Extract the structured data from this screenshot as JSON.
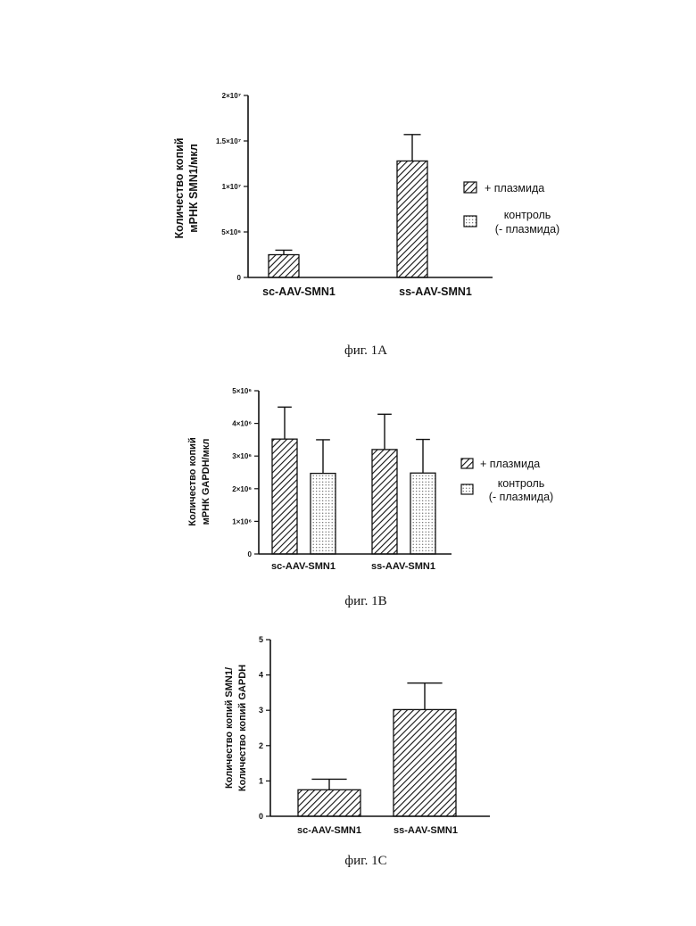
{
  "colors": {
    "ink": "#111111",
    "dots": "#444444"
  },
  "chart_data": [
    {
      "type": "bar",
      "caption": "фиг. 1A",
      "ylabel": [
        "Количество копий",
        "мРНК SMN1/мкл"
      ],
      "ylim": [
        0,
        20000000
      ],
      "yticks": [
        {
          "v": 0,
          "label": "0"
        },
        {
          "v": 5000000,
          "label": "5×10⁶"
        },
        {
          "v": 10000000,
          "label": "1×10⁷"
        },
        {
          "v": 15000000,
          "label": "1.5×10⁷"
        },
        {
          "v": 20000000,
          "label": "2×10⁷"
        }
      ],
      "categories": [
        "sc-AAV-SMN1",
        "ss-AAV-SMN1"
      ],
      "series": [
        {
          "name": "+ плазмида",
          "pattern": "hatch",
          "values": [
            2500000,
            12800000
          ],
          "errors": [
            500000,
            2900000
          ]
        },
        {
          "name": "контроль (- плазмида)",
          "pattern": "dots",
          "values": [
            0,
            0
          ],
          "errors": [
            0,
            0
          ]
        }
      ],
      "legend": [
        "+ плазмида",
        "контроль",
        "(- плазмида)"
      ]
    },
    {
      "type": "bar",
      "caption": "фиг. 1B",
      "ylabel": [
        "Количество копий",
        "мРНК GAPDH/мкл"
      ],
      "ylim": [
        0,
        5000000
      ],
      "yticks": [
        {
          "v": 0,
          "label": "0"
        },
        {
          "v": 1000000,
          "label": "1×10⁶"
        },
        {
          "v": 2000000,
          "label": "2×10⁶"
        },
        {
          "v": 3000000,
          "label": "3×10⁶"
        },
        {
          "v": 4000000,
          "label": "4×10⁶"
        },
        {
          "v": 5000000,
          "label": "5×10⁶"
        }
      ],
      "categories": [
        "sc-AAV-SMN1",
        "ss-AAV-SMN1"
      ],
      "series": [
        {
          "name": "+ плазмида",
          "pattern": "hatch",
          "values": [
            3520000,
            3200000
          ],
          "errors": [
            980000,
            1080000
          ]
        },
        {
          "name": "контроль (- плазмида)",
          "pattern": "dots",
          "values": [
            2470000,
            2480000
          ],
          "errors": [
            1030000,
            1030000
          ]
        }
      ],
      "legend": [
        "+ плазмида",
        "контроль",
        "(- плазмида)"
      ]
    },
    {
      "type": "bar",
      "caption": "фиг. 1C",
      "ylabel": [
        "Количество копий SMN1/",
        "Количество копий GAPDH"
      ],
      "ylim": [
        0,
        5
      ],
      "yticks": [
        {
          "v": 0,
          "label": "0"
        },
        {
          "v": 1,
          "label": "1"
        },
        {
          "v": 2,
          "label": "2"
        },
        {
          "v": 3,
          "label": "3"
        },
        {
          "v": 4,
          "label": "4"
        },
        {
          "v": 5,
          "label": "5"
        }
      ],
      "categories": [
        "sc-AAV-SMN1",
        "ss-AAV-SMN1"
      ],
      "series": [
        {
          "pattern": "hatch",
          "values": [
            0.75,
            3.02
          ],
          "errors": [
            0.3,
            0.75
          ]
        }
      ]
    }
  ]
}
